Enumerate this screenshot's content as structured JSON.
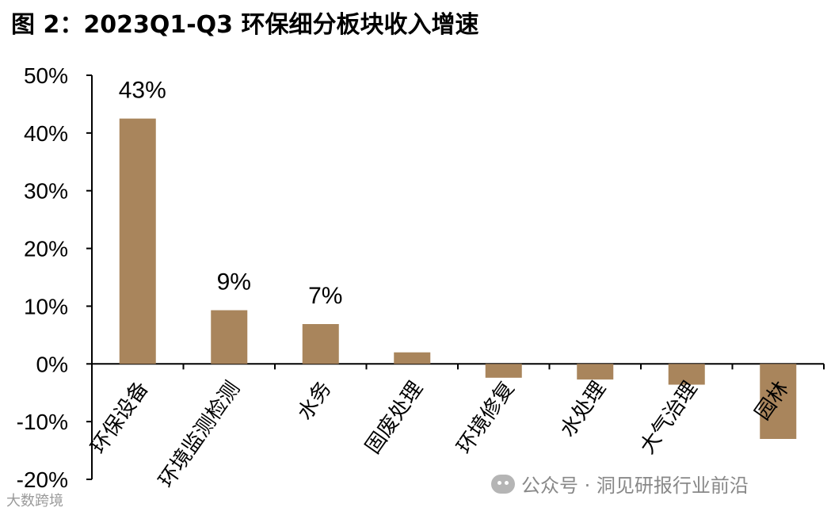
{
  "title": "图 2：2023Q1-Q3 环保细分板块收入增速",
  "chart_data": {
    "type": "bar",
    "categories": [
      "环保设备",
      "环境监测检测",
      "水务",
      "固废处理",
      "环境修复",
      "水处理",
      "大气治理",
      "园林"
    ],
    "values": [
      42.5,
      9.3,
      6.9,
      2.0,
      -2.4,
      -2.7,
      -3.6,
      -13.0
    ],
    "data_labels": [
      "43%",
      "9%",
      "7%",
      "",
      "",
      "",
      "",
      ""
    ],
    "ylim": [
      -20,
      50
    ],
    "yticks": [
      50,
      40,
      30,
      20,
      10,
      0,
      -10,
      -20
    ],
    "ytick_labels": [
      "50%",
      "40%",
      "30%",
      "20%",
      "10%",
      "0%",
      "-10%",
      "-20%"
    ],
    "bar_color": "#a9855c",
    "grid": false
  },
  "watermarks": {
    "left": "大数跨境",
    "right": "公众号 · 洞见研报行业前沿"
  }
}
